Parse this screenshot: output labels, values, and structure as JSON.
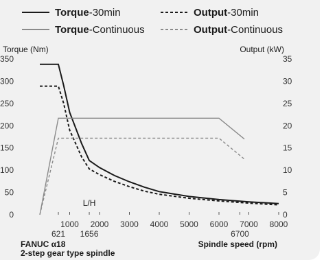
{
  "chart_data": {
    "type": "line",
    "legend": [
      {
        "bold": "Torque",
        "rest": "-30min",
        "style": "solid",
        "color": "#1a1a1a"
      },
      {
        "bold": "Output",
        "rest": "-30min",
        "style": "dashed",
        "color": "#1a1a1a"
      },
      {
        "bold": "Torque",
        "rest": "-Continuous",
        "style": "solid",
        "color": "#8a8a8a"
      },
      {
        "bold": "Output",
        "rest": "-Continuous",
        "style": "dashed",
        "color": "#8a8a8a"
      }
    ],
    "left_axis_title": "Torque (Nm)",
    "right_axis_title": "Output (kW)",
    "xlabel": "Spindle speed (rpm)",
    "xlim": [
      0,
      8000
    ],
    "ylim_left": [
      0,
      350
    ],
    "ylim_right": [
      0,
      35
    ],
    "x_ticks": [
      1000,
      2000,
      3000,
      4000,
      5000,
      6000,
      7000,
      8000
    ],
    "x_ticks_labels": [
      "1000",
      "2000",
      "3000",
      "4000",
      "5000",
      "6000",
      "7000",
      "8000"
    ],
    "x_sub_ticks": [
      621,
      1656,
      6700
    ],
    "x_sub_ticks_labels": [
      "621",
      "1656",
      "6700"
    ],
    "y_left_ticks": [
      0,
      50,
      100,
      150,
      200,
      250,
      300,
      350
    ],
    "y_left_ticks_labels": [
      "0",
      "50",
      "100",
      "150",
      "200",
      "250",
      "300",
      "350"
    ],
    "y_right_ticks": [
      0,
      5,
      10,
      15,
      20,
      25,
      30,
      35
    ],
    "y_right_ticks_labels": [
      "0",
      "5",
      "10",
      "15",
      "20",
      "25",
      "30",
      "35"
    ],
    "annotation": "L/H",
    "series": [
      {
        "name": "Torque-30min",
        "axis": "left",
        "x": [
          0,
          621,
          800,
          1000,
          1200,
          1400,
          1656,
          2000,
          2500,
          3000,
          3500,
          4000,
          5000,
          6000,
          7000,
          8000
        ],
        "y": [
          338,
          338,
          290,
          230,
          195,
          160,
          122,
          106,
          88,
          74,
          62,
          52,
          41,
          34,
          29,
          25
        ]
      },
      {
        "name": "Torque-Continuous",
        "axis": "left",
        "x": [
          0,
          621,
          800,
          1000,
          1200,
          1400,
          1656,
          2000,
          2500,
          3000,
          3500,
          4000,
          5000,
          6000,
          7000,
          8000
        ],
        "y": [
          289,
          289,
          250,
          190,
          160,
          130,
          103,
          90,
          75,
          63,
          53,
          46,
          37,
          31,
          26,
          22
        ]
      },
      {
        "name": "Output-30min",
        "axis": "right",
        "x": [
          0,
          621,
          6000,
          6850
        ],
        "y": [
          0,
          21.7,
          21.7,
          17
        ]
      },
      {
        "name": "Output-Continuous",
        "axis": "right",
        "x": [
          0,
          621,
          6000,
          6850
        ],
        "y": [
          0,
          17.2,
          17.2,
          12.5
        ]
      }
    ]
  },
  "footer": {
    "model_name": "FANUC α18",
    "model_type": "2-step gear type spindle"
  }
}
